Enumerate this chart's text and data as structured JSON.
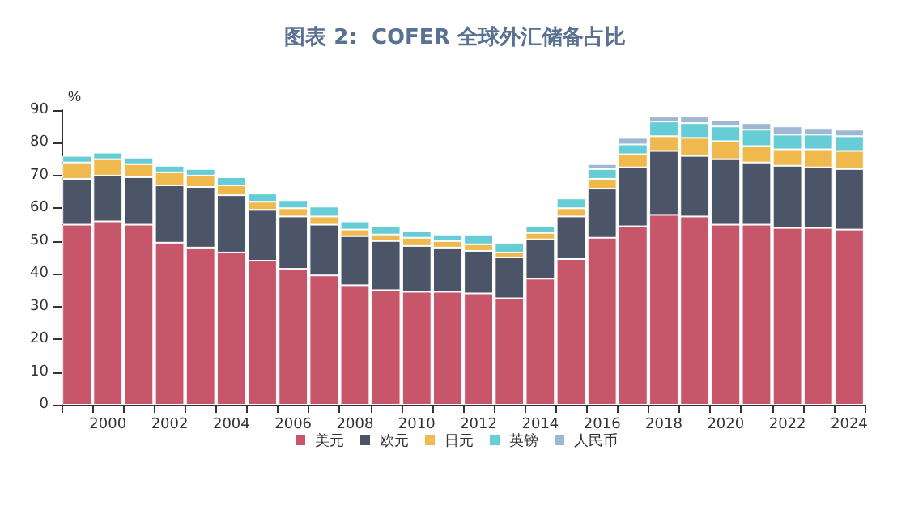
{
  "chart_data": {
    "type": "bar",
    "stacked": true,
    "title": "图表 2:  COFER 全球外汇储备占比",
    "ylabel": "%",
    "categories": [
      null,
      "2000",
      null,
      "2002",
      null,
      "2004",
      null,
      "2006",
      null,
      "2008",
      null,
      "2010",
      null,
      "2012",
      null,
      "2014",
      null,
      "2016",
      null,
      "2018",
      null,
      "2020",
      null,
      "2022",
      null,
      "2024"
    ],
    "series": [
      {
        "name": "美元",
        "color": "#c8566a",
        "values": [
          55,
          56,
          55,
          49.5,
          48,
          46.5,
          44,
          41.5,
          39.5,
          36.5,
          35,
          34.5,
          34.5,
          34,
          32.5,
          38.5,
          44.5,
          51,
          54.5,
          58,
          57.5,
          55,
          55,
          54,
          54,
          53.5
        ]
      },
      {
        "name": "欧元",
        "color": "#4b5567",
        "values": [
          14,
          14,
          14.5,
          17.5,
          18.5,
          17.5,
          15.5,
          16,
          15.5,
          15,
          15,
          14,
          13.5,
          13,
          12.5,
          12,
          13,
          15,
          18,
          19.5,
          18.5,
          20,
          19,
          19,
          18.5,
          18.5
        ]
      },
      {
        "name": "日元",
        "color": "#f0b94e",
        "values": [
          5,
          5,
          4,
          4,
          3.5,
          3,
          2.5,
          2.5,
          2.5,
          2,
          2,
          2.5,
          2,
          2,
          1.5,
          2,
          2.5,
          3,
          4,
          4.5,
          5.5,
          5.5,
          5,
          5,
          5.5,
          5.5
        ]
      },
      {
        "name": "英镑",
        "color": "#66cdd6",
        "values": [
          2,
          2,
          2,
          2,
          2,
          2.5,
          2.5,
          2.5,
          3,
          2.5,
          2.5,
          2,
          2,
          3,
          3,
          2,
          3,
          3,
          3,
          4.5,
          4.5,
          4.5,
          5,
          4.5,
          4.5,
          4.5
        ]
      },
      {
        "name": "人民币",
        "color": "#9fb7d2",
        "values": [
          null,
          null,
          null,
          null,
          null,
          null,
          null,
          null,
          null,
          null,
          null,
          null,
          null,
          null,
          null,
          null,
          null,
          1.5,
          2,
          1.5,
          2,
          2,
          2,
          2.5,
          2,
          2
        ]
      }
    ],
    "ylim": [
      0,
      90
    ],
    "yticks": [
      0,
      10,
      20,
      30,
      40,
      50,
      60,
      70,
      80,
      90
    ],
    "grid": false,
    "legend": "bottom"
  }
}
